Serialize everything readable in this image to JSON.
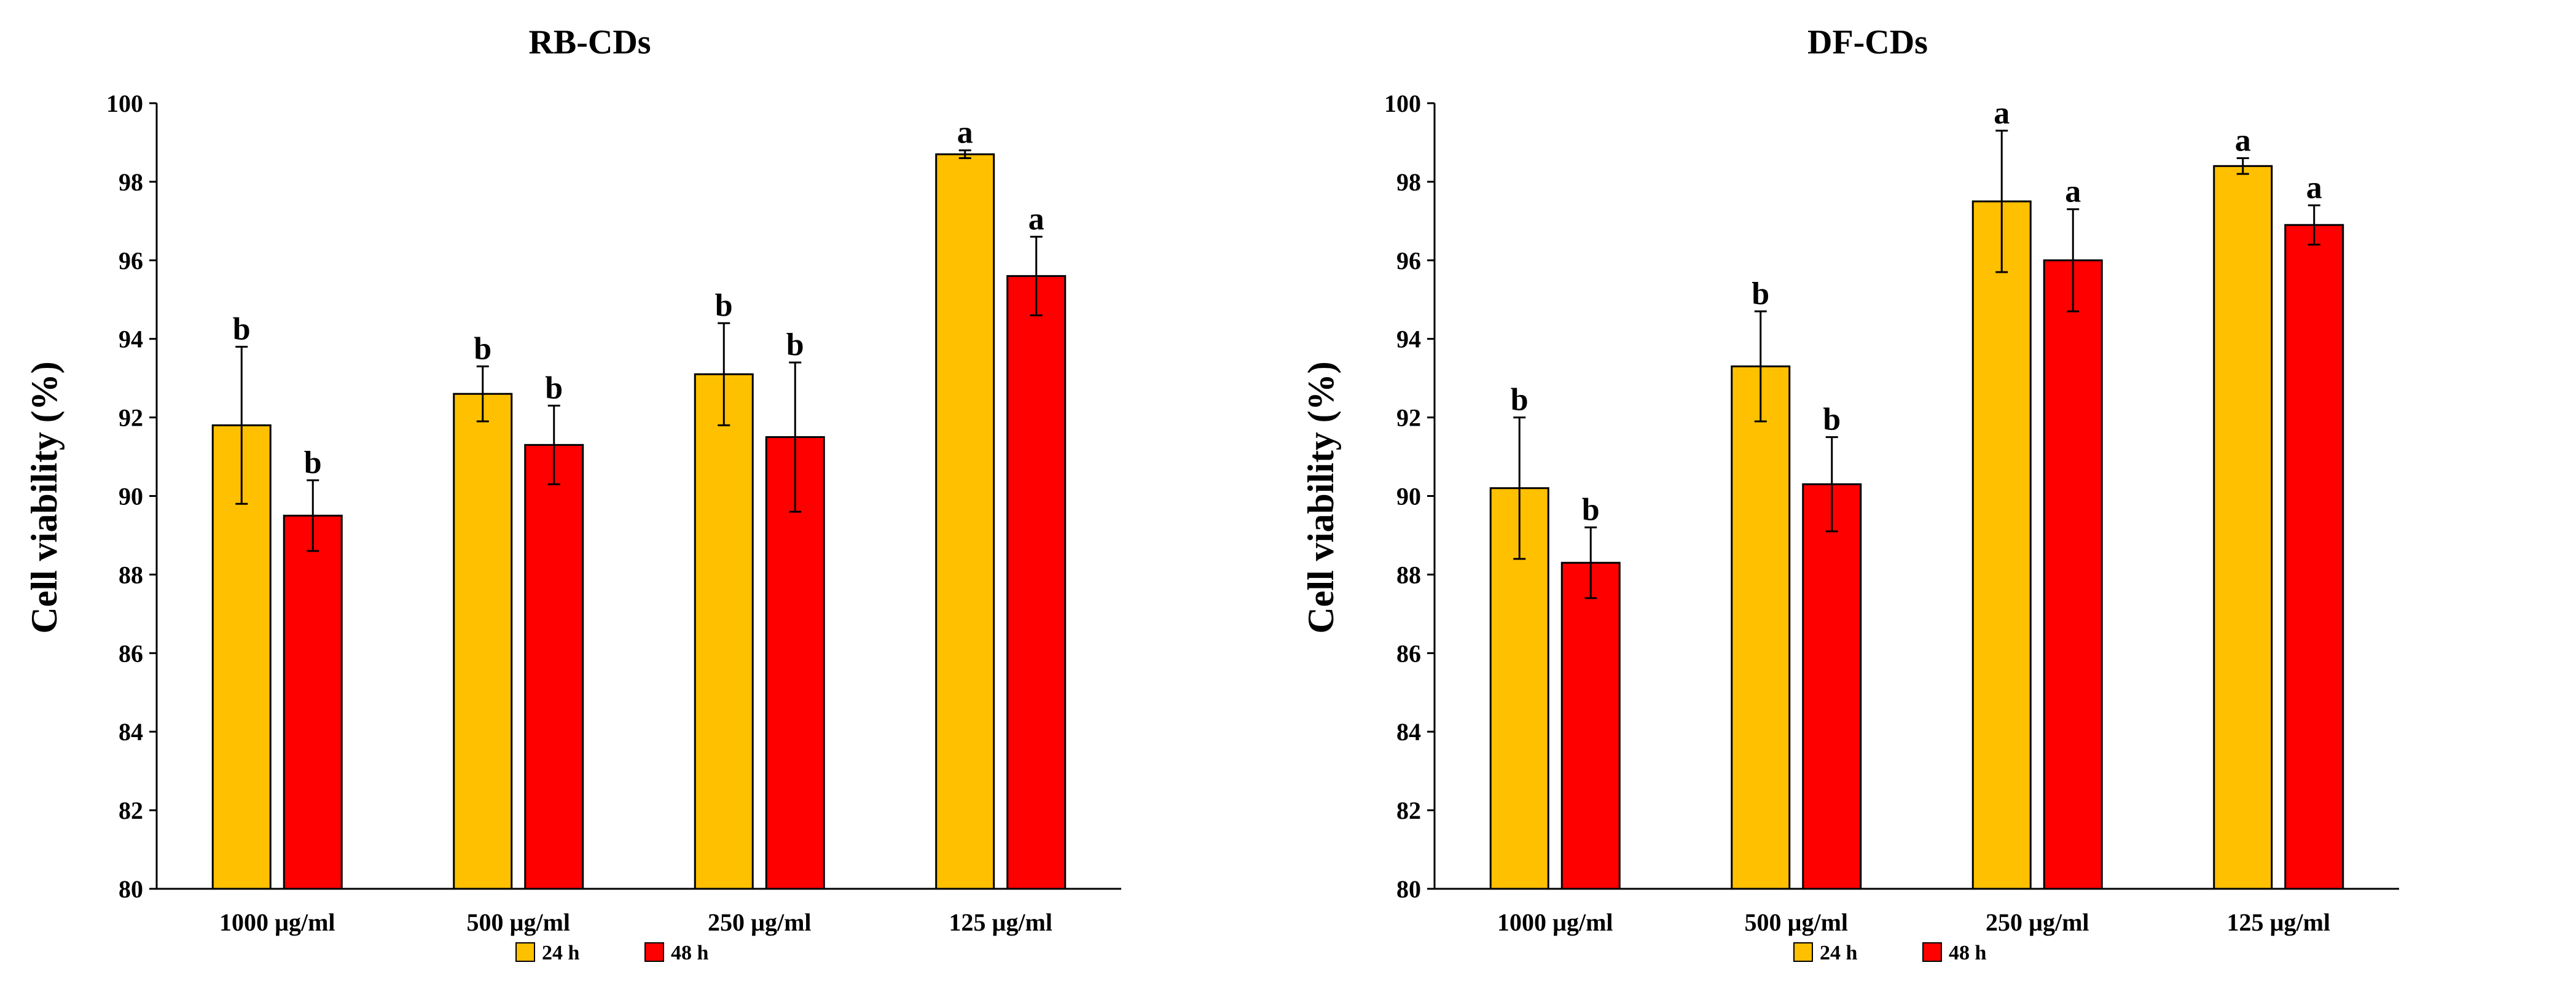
{
  "chart_data": [
    {
      "type": "bar",
      "title": "RB-CDs",
      "xlabel": "",
      "ylabel": "Cell viability (%)",
      "ylim": [
        80,
        100
      ],
      "ytick_step": 2,
      "yticks": [
        "80",
        "82",
        "84",
        "86",
        "88",
        "90",
        "92",
        "94",
        "96",
        "98",
        "100"
      ],
      "categories": [
        "1000 µg/ml",
        "500 µg/ml",
        "250 µg/ml",
        "125 µg/ml"
      ],
      "series": [
        {
          "name": "24 h",
          "color": "#FFC000",
          "values": [
            91.8,
            92.6,
            93.1,
            98.7
          ],
          "errors": [
            2.0,
            0.7,
            1.3,
            0.1
          ],
          "labels": [
            "b",
            "b",
            "b",
            "a"
          ]
        },
        {
          "name": "48 h",
          "color": "#FF0000",
          "values": [
            89.5,
            91.3,
            91.5,
            95.6
          ],
          "errors": [
            0.9,
            1.0,
            1.9,
            1.0
          ],
          "labels": [
            "b",
            "b",
            "b",
            "a"
          ]
        }
      ],
      "legend": "bottom-center"
    },
    {
      "type": "bar",
      "title": "DF-CDs",
      "xlabel": "",
      "ylabel": "Cell viability (%)",
      "ylim": [
        80,
        100
      ],
      "ytick_step": 2,
      "yticks": [
        "80",
        "82",
        "84",
        "86",
        "88",
        "90",
        "92",
        "94",
        "96",
        "98",
        "100"
      ],
      "categories": [
        "1000 µg/ml",
        "500 µg/ml",
        "250 µg/ml",
        "125 µg/ml"
      ],
      "series": [
        {
          "name": "24 h",
          "color": "#FFC000",
          "values": [
            90.2,
            93.3,
            97.5,
            98.4
          ],
          "errors": [
            1.8,
            1.4,
            1.8,
            0.2
          ],
          "labels": [
            "b",
            "b",
            "a",
            "a"
          ]
        },
        {
          "name": "48 h",
          "color": "#FF0000",
          "values": [
            88.3,
            90.3,
            96.0,
            96.9
          ],
          "errors": [
            0.9,
            1.2,
            1.3,
            0.5
          ],
          "labels": [
            "b",
            "b",
            "a",
            "a"
          ]
        }
      ],
      "legend": "bottom-center"
    }
  ]
}
